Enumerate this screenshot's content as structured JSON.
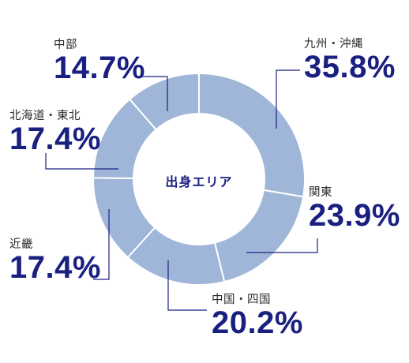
{
  "chart_data": {
    "type": "pie",
    "title": "出身エリア",
    "categories": [
      "九州・沖縄",
      "関東",
      "中国・四国",
      "近畿",
      "北海道・東北",
      "中部"
    ],
    "values": [
      35.8,
      23.9,
      20.2,
      17.4,
      17.4,
      14.7
    ],
    "value_labels": [
      "35.8%",
      "23.9%",
      "20.2%",
      "17.4%",
      "17.4%",
      "14.7%"
    ],
    "colors": {
      "slice": "#9fb6d9",
      "separator": "#ffffff",
      "text": "#1a2080",
      "leader": "#1a2080"
    }
  }
}
